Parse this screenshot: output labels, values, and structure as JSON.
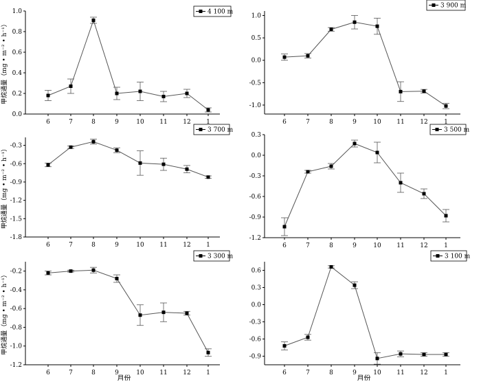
{
  "figure": {
    "xlabel": "月份",
    "ylabel": "甲烷通量（mg • m⁻² • h⁻¹）"
  },
  "chart_data": [
    {
      "type": "line",
      "categories": [
        "6",
        "7",
        "8",
        "9",
        "10",
        "11",
        "12",
        "1"
      ],
      "series": [
        {
          "name": "4 100 m",
          "values": [
            0.18,
            0.27,
            0.91,
            0.2,
            0.22,
            0.17,
            0.2,
            0.04
          ],
          "errors": [
            0.05,
            0.07,
            0.03,
            0.06,
            0.09,
            0.05,
            0.04,
            0.02
          ]
        }
      ],
      "ylim": [
        0,
        1.0
      ],
      "yticks": [
        "0.0",
        "0.2",
        "0.4",
        "0.6",
        "0.8",
        "1.0"
      ],
      "legend": "top-right",
      "ylabel": "甲烷通量（mg • m⁻² • h⁻¹）"
    },
    {
      "type": "line",
      "categories": [
        "6",
        "7",
        "8",
        "9",
        "10",
        "11",
        "12",
        "1"
      ],
      "series": [
        {
          "name": "3 900 m",
          "values": [
            0.07,
            0.1,
            0.69,
            0.85,
            0.76,
            -0.7,
            -0.69,
            -1.02
          ],
          "errors": [
            0.07,
            0.05,
            0.04,
            0.15,
            0.18,
            0.22,
            0.04,
            0.06
          ]
        }
      ],
      "ylim": [
        -1.2,
        1.2
      ],
      "yticks": [
        "-1.0",
        "-0.5",
        "0.0",
        "0.5",
        "1.0"
      ],
      "legend": "top-right",
      "ylabel": ""
    },
    {
      "type": "line",
      "categories": [
        "6",
        "7",
        "8",
        "9",
        "10",
        "11",
        "12",
        "1"
      ],
      "series": [
        {
          "name": "3 700 m",
          "values": [
            -0.62,
            -0.33,
            -0.24,
            -0.38,
            -0.59,
            -0.61,
            -0.69,
            -0.82
          ],
          "errors": [
            0.03,
            0.02,
            0.04,
            0.04,
            0.2,
            0.1,
            0.06,
            0.02
          ]
        }
      ],
      "ylim": [
        -1.8,
        -0.15
      ],
      "yticks": [
        "-1.8",
        "-1.5",
        "-1.2",
        "-0.9",
        "-0.6",
        "-0.3"
      ],
      "legend": "top-right",
      "ylabel": "甲烷通量（mg • m⁻² • h⁻¹）"
    },
    {
      "type": "line",
      "categories": [
        "6",
        "7",
        "8",
        "9",
        "10",
        "11",
        "12",
        "1"
      ],
      "series": [
        {
          "name": "3 500 m",
          "values": [
            -1.04,
            -0.24,
            -0.16,
            0.17,
            0.04,
            -0.4,
            -0.56,
            -0.88
          ],
          "errors": [
            0.13,
            0.02,
            0.04,
            0.05,
            0.15,
            0.14,
            0.07,
            0.09
          ]
        }
      ],
      "ylim": [
        -1.2,
        0.3
      ],
      "yticks": [
        "-1.2",
        "-0.9",
        "-0.6",
        "-0.3",
        "0.0",
        "0.3"
      ],
      "legend": "top-right",
      "ylabel": ""
    },
    {
      "type": "line",
      "categories": [
        "6",
        "7",
        "8",
        "9",
        "10",
        "11",
        "12",
        "1"
      ],
      "series": [
        {
          "name": "3 300 m",
          "values": [
            -0.22,
            -0.2,
            -0.19,
            -0.28,
            -0.67,
            -0.64,
            -0.65,
            -1.07
          ],
          "errors": [
            0.02,
            0.01,
            0.03,
            0.04,
            0.11,
            0.1,
            0.02,
            0.04
          ]
        }
      ],
      "ylim": [
        -1.2,
        -0.1
      ],
      "yticks": [
        "-1.2",
        "-1.0",
        "-0.8",
        "-0.6",
        "-0.4",
        "-0.2"
      ],
      "legend": "top-right",
      "ylabel": "甲烷通量（mg • m⁻² • h⁻¹）",
      "xlabel": "月份"
    },
    {
      "type": "line",
      "categories": [
        "6",
        "7",
        "8",
        "9",
        "10",
        "11",
        "12",
        "1"
      ],
      "series": [
        {
          "name": "3 100 m",
          "values": [
            -0.72,
            -0.57,
            0.66,
            0.34,
            -0.94,
            -0.86,
            -0.87,
            -0.87
          ],
          "errors": [
            0.07,
            0.05,
            0.02,
            0.06,
            0.1,
            0.05,
            0.03,
            0.03
          ]
        }
      ],
      "ylim": [
        -1.05,
        0.75
      ],
      "yticks": [
        "-0.9",
        "-0.6",
        "-0.3",
        "0.0",
        "0.3",
        "0.6"
      ],
      "legend": "top-right",
      "ylabel": "",
      "xlabel": "月份"
    }
  ]
}
